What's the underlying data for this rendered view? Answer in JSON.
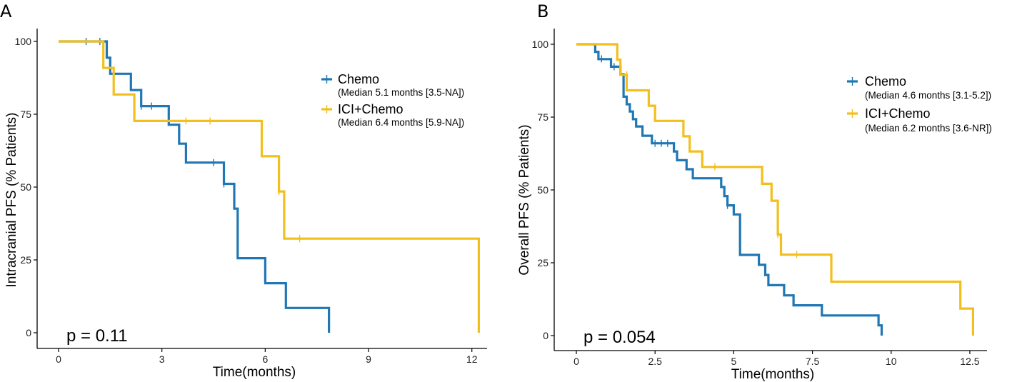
{
  "chart_data": [
    {
      "type": "line",
      "subtype": "kaplan-meier",
      "panel": "A",
      "xlabel": "Time(months)",
      "ylabel": "Intracranial PFS (% Patients)",
      "xlim": [
        0,
        12.4
      ],
      "ylim": [
        0,
        100
      ],
      "xticks": [
        0,
        3,
        6,
        9,
        12
      ],
      "xtick_labels": [
        "0",
        "3",
        "6",
        "9",
        "12"
      ],
      "yticks": [
        0,
        25,
        50,
        75,
        100
      ],
      "ytick_labels": [
        "0",
        "25",
        "50",
        "75",
        "100"
      ],
      "p_value": "p = 0.11",
      "legend_position": "top-right",
      "series": [
        {
          "name": "Chemo",
          "label": "Chemo",
          "sublabel": "(Median 5.1 months [3.5-NA])",
          "color": "#1f77b4",
          "steps": [
            [
              0,
              100
            ],
            [
              1.4,
              94.4
            ],
            [
              1.5,
              88.9
            ],
            [
              2.1,
              83.3
            ],
            [
              2.4,
              77.8
            ],
            [
              3.2,
              71.4
            ],
            [
              3.5,
              64.9
            ],
            [
              3.7,
              58.4
            ],
            [
              4.8,
              51.1
            ],
            [
              5.1,
              42.6
            ],
            [
              5.2,
              25.6
            ],
            [
              6.0,
              17.0
            ],
            [
              6.6,
              8.5
            ],
            [
              7.85,
              0
            ]
          ],
          "censors": [
            [
              0.8,
              100
            ],
            [
              1.2,
              100
            ],
            [
              2.4,
              77.8
            ],
            [
              2.7,
              77.8
            ],
            [
              4.5,
              58.4
            ],
            [
              4.8,
              51.1
            ]
          ]
        },
        {
          "name": "ICI+Chemo",
          "label": "ICI+Chemo",
          "sublabel": "(Median 6.4 months [5.9-NA])",
          "color": "#f2bf1d",
          "steps": [
            [
              0,
              100
            ],
            [
              1.3,
              90.9
            ],
            [
              1.6,
              81.8
            ],
            [
              2.2,
              72.7
            ],
            [
              5.9,
              60.6
            ],
            [
              6.4,
              48.5
            ],
            [
              6.55,
              32.3
            ],
            [
              12.2,
              0
            ]
          ],
          "censors": [
            [
              3.7,
              72.7
            ],
            [
              4.4,
              72.7
            ],
            [
              6.4,
              48.5
            ],
            [
              7.0,
              32.3
            ]
          ]
        }
      ]
    },
    {
      "type": "line",
      "subtype": "kaplan-meier",
      "panel": "B",
      "xlabel": "Time(months)",
      "ylabel": "Overall PFS (% Patients)",
      "xlim": [
        0,
        13.0
      ],
      "ylim": [
        0,
        100
      ],
      "xticks": [
        0,
        2.5,
        5,
        7.5,
        10,
        12.5
      ],
      "xtick_labels": [
        "0",
        "2.5",
        "5",
        "7.5",
        "10",
        "12.5"
      ],
      "yticks": [
        0,
        25,
        50,
        75,
        100
      ],
      "ytick_labels": [
        "0",
        "25",
        "50",
        "75",
        "100"
      ],
      "p_value": "p = 0.054",
      "legend_position": "top-right",
      "series": [
        {
          "name": "Chemo",
          "label": "Chemo",
          "sublabel": "(Median 4.6 months [3.1-5.2])",
          "color": "#1f77b4",
          "steps": [
            [
              0,
              100
            ],
            [
              0.6,
              97.4
            ],
            [
              0.7,
              94.9
            ],
            [
              1.1,
              92.3
            ],
            [
              1.4,
              89.7
            ],
            [
              1.5,
              82.0
            ],
            [
              1.6,
              79.4
            ],
            [
              1.7,
              76.9
            ],
            [
              1.8,
              74.3
            ],
            [
              1.9,
              71.8
            ],
            [
              2.1,
              68.6
            ],
            [
              2.4,
              66.0
            ],
            [
              3.1,
              63.2
            ],
            [
              3.2,
              60.2
            ],
            [
              3.5,
              57.1
            ],
            [
              3.7,
              54.0
            ],
            [
              4.6,
              51.0
            ],
            [
              4.7,
              47.9
            ],
            [
              4.8,
              44.7
            ],
            [
              5.0,
              41.6
            ],
            [
              5.2,
              27.7
            ],
            [
              5.8,
              24.3
            ],
            [
              6.0,
              20.8
            ],
            [
              6.1,
              17.3
            ],
            [
              6.6,
              13.8
            ],
            [
              6.9,
              10.4
            ],
            [
              7.8,
              6.9
            ],
            [
              9.6,
              3.5
            ],
            [
              9.7,
              0
            ]
          ],
          "censors": [
            [
              0.8,
              95
            ],
            [
              1.2,
              92.3
            ],
            [
              2.5,
              66.0
            ],
            [
              2.7,
              66.0
            ],
            [
              2.9,
              66.0
            ],
            [
              4.8,
              44.7
            ]
          ]
        },
        {
          "name": "ICI+Chemo",
          "label": "ICI+Chemo",
          "sublabel": "(Median 6.2 months [3.6-NR])",
          "color": "#f2bf1d",
          "steps": [
            [
              0,
              100
            ],
            [
              1.3,
              94.7
            ],
            [
              1.4,
              89.5
            ],
            [
              1.6,
              84.2
            ],
            [
              2.3,
              78.9
            ],
            [
              2.5,
              73.7
            ],
            [
              3.4,
              68.4
            ],
            [
              3.6,
              63.2
            ],
            [
              4.0,
              57.9
            ],
            [
              5.9,
              52.1
            ],
            [
              6.2,
              46.3
            ],
            [
              6.4,
              34.7
            ],
            [
              6.5,
              27.8
            ],
            [
              8.1,
              18.5
            ],
            [
              12.2,
              9.3
            ],
            [
              12.6,
              0
            ]
          ],
          "censors": [
            [
              1.6,
              89.5
            ],
            [
              4.4,
              57.9
            ],
            [
              6.4,
              34.7
            ],
            [
              7.0,
              27.8
            ]
          ]
        }
      ]
    }
  ]
}
